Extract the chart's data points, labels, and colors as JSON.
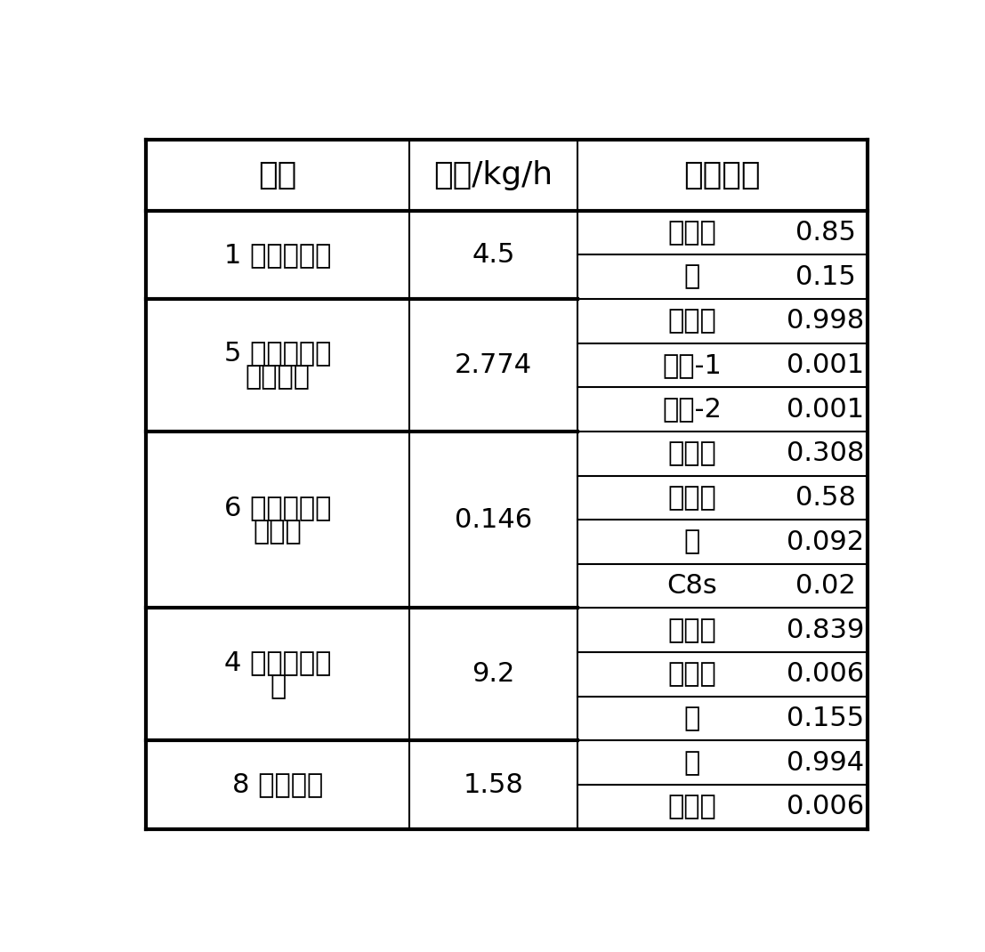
{
  "col_headers": [
    "物流",
    "流量/kg/h",
    "质量组成"
  ],
  "streams": [
    {
      "name": "1 叔丁醇原料",
      "name_lines": [
        "1 叔丁醇原料"
      ],
      "flow": "4.5",
      "components": [
        [
          "叔丁醇",
          "0.85"
        ],
        [
          "水",
          "0.15"
        ]
      ]
    },
    {
      "name": "5 塔顶汽相异\n丁烯产品",
      "name_lines": [
        "5 塔顶汽相异",
        "丁烯产品"
      ],
      "flow": "2.774",
      "components": [
        [
          "异丁烯",
          "0.998"
        ],
        [
          "丁烯-1",
          "0.001"
        ],
        [
          "丁烯-2",
          "0.001"
        ]
      ]
    },
    {
      "name": "6 塔顶液相采\n出物料",
      "name_lines": [
        "6 塔顶液相采",
        "出物料"
      ],
      "flow": "0.146",
      "components": [
        [
          "异丁烯",
          "0.308"
        ],
        [
          "叔丁醇",
          "0.58"
        ],
        [
          "水",
          "0.092"
        ],
        [
          "C8s",
          "0.02"
        ]
      ]
    },
    {
      "name": "4 侧线采出物\n料",
      "name_lines": [
        "4 侧线采出物",
        "料"
      ],
      "flow": "9.2",
      "components": [
        [
          "叔丁醇",
          "0.839"
        ],
        [
          "异丁烯",
          "0.006"
        ],
        [
          "水",
          "0.155"
        ]
      ]
    },
    {
      "name": "8 塔釜出料",
      "name_lines": [
        "8 塔釜出料"
      ],
      "flow": "1.58",
      "components": [
        [
          "水",
          "0.994"
        ],
        [
          "叔丁醇",
          "0.006"
        ]
      ]
    }
  ],
  "bg_color": "#ffffff",
  "text_color": "#000000",
  "line_color": "#000000",
  "header_fontsize": 26,
  "cell_fontsize": 22,
  "fig_width": 11.07,
  "fig_height": 10.7
}
